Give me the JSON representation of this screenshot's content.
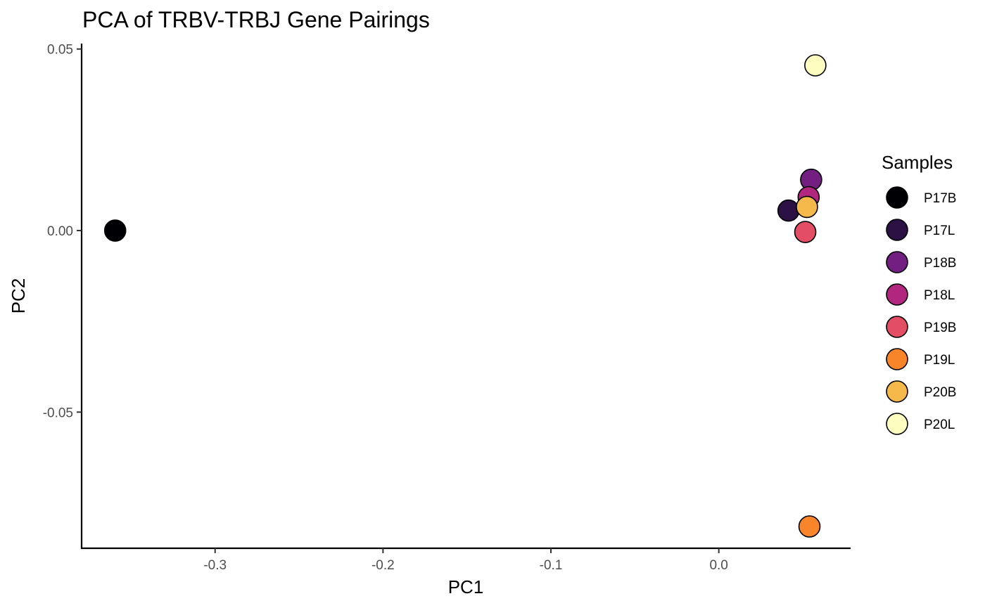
{
  "chart_data": {
    "type": "scatter",
    "title": "PCA of TRBV-TRBJ Gene Pairings",
    "xlabel": "PC1",
    "ylabel": "PC2",
    "xlim": [
      -0.3795,
      0.0785
    ],
    "ylim": [
      -0.0875,
      0.0515
    ],
    "x_ticks": [
      -0.3,
      -0.2,
      -0.1,
      0.0
    ],
    "x_tick_labels": [
      "-0.3",
      "-0.2",
      "-0.1",
      "0.0"
    ],
    "y_ticks": [
      0.05,
      0.0,
      -0.05
    ],
    "y_tick_labels": [
      "0.05",
      "0.00",
      "-0.05"
    ],
    "grid": false,
    "legend": {
      "title": "Samples",
      "position": "right"
    },
    "series": [
      {
        "name": "P17B",
        "color": "#000004",
        "x": -0.3595,
        "y": 0.0
      },
      {
        "name": "P17L",
        "color": "#2C1145",
        "x": 0.0415,
        "y": 0.0055
      },
      {
        "name": "P18B",
        "color": "#721F81",
        "x": 0.055,
        "y": 0.014
      },
      {
        "name": "P18L",
        "color": "#B1267F",
        "x": 0.0535,
        "y": 0.0092
      },
      {
        "name": "P19B",
        "color": "#E34E65",
        "x": 0.0515,
        "y": -0.0004
      },
      {
        "name": "P19L",
        "color": "#F8852A",
        "x": 0.054,
        "y": -0.0815
      },
      {
        "name": "P20B",
        "color": "#F4B94A",
        "x": 0.0525,
        "y": 0.0065
      },
      {
        "name": "P20L",
        "color": "#FCFDBF",
        "x": 0.0575,
        "y": 0.0455
      }
    ]
  }
}
